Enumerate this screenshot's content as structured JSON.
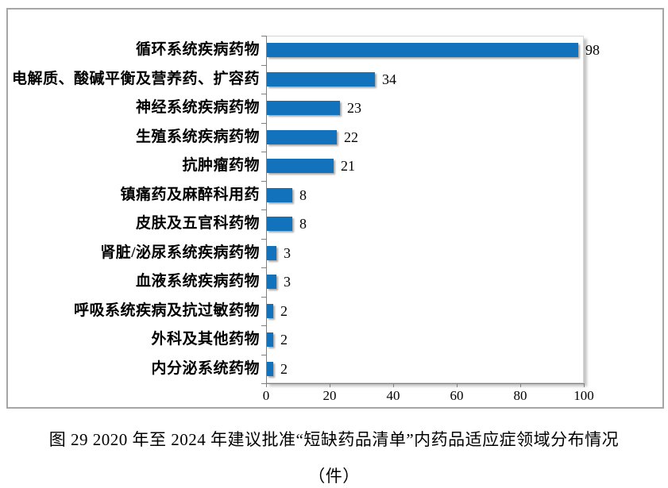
{
  "figure": {
    "caption_line1": "图 29  2020 年至 2024 年建议批准“短缺药品清单”内药品适应症领域分布情况",
    "caption_line2": "（件）"
  },
  "chart_data": {
    "type": "bar",
    "orientation": "horizontal",
    "title": "图 29 2020 年至 2024 年建议批准“短缺药品清单”内药品适应症领域分布情况（件）",
    "xlabel": "",
    "ylabel": "",
    "categories": [
      "循环系统疾病药物",
      "电解质、酸碱平衡及营养药、扩容药",
      "神经系统疾病药物",
      "生殖系统疾病药物",
      "抗肿瘤药物",
      "镇痛药及麻醉科用药",
      "皮肤及五官科药物",
      "肾脏/泌尿系统疾病药物",
      "血液系统疾病药物",
      "呼吸系统疾病及抗过敏药物",
      "外科及其他药物",
      "内分泌系统药物"
    ],
    "values": [
      98,
      34,
      23,
      22,
      21,
      8,
      8,
      3,
      3,
      2,
      2,
      2
    ],
    "data_labels": [
      "98",
      "34",
      "23",
      "22",
      "21",
      "8",
      "8",
      "3",
      "3",
      "2",
      "2",
      "2"
    ],
    "xlim": [
      0,
      100
    ],
    "x_ticks": [
      0,
      20,
      40,
      60,
      80,
      100
    ],
    "grid": false,
    "legend": false,
    "bar_color": "#1272bc",
    "axis_color": "#808080"
  }
}
